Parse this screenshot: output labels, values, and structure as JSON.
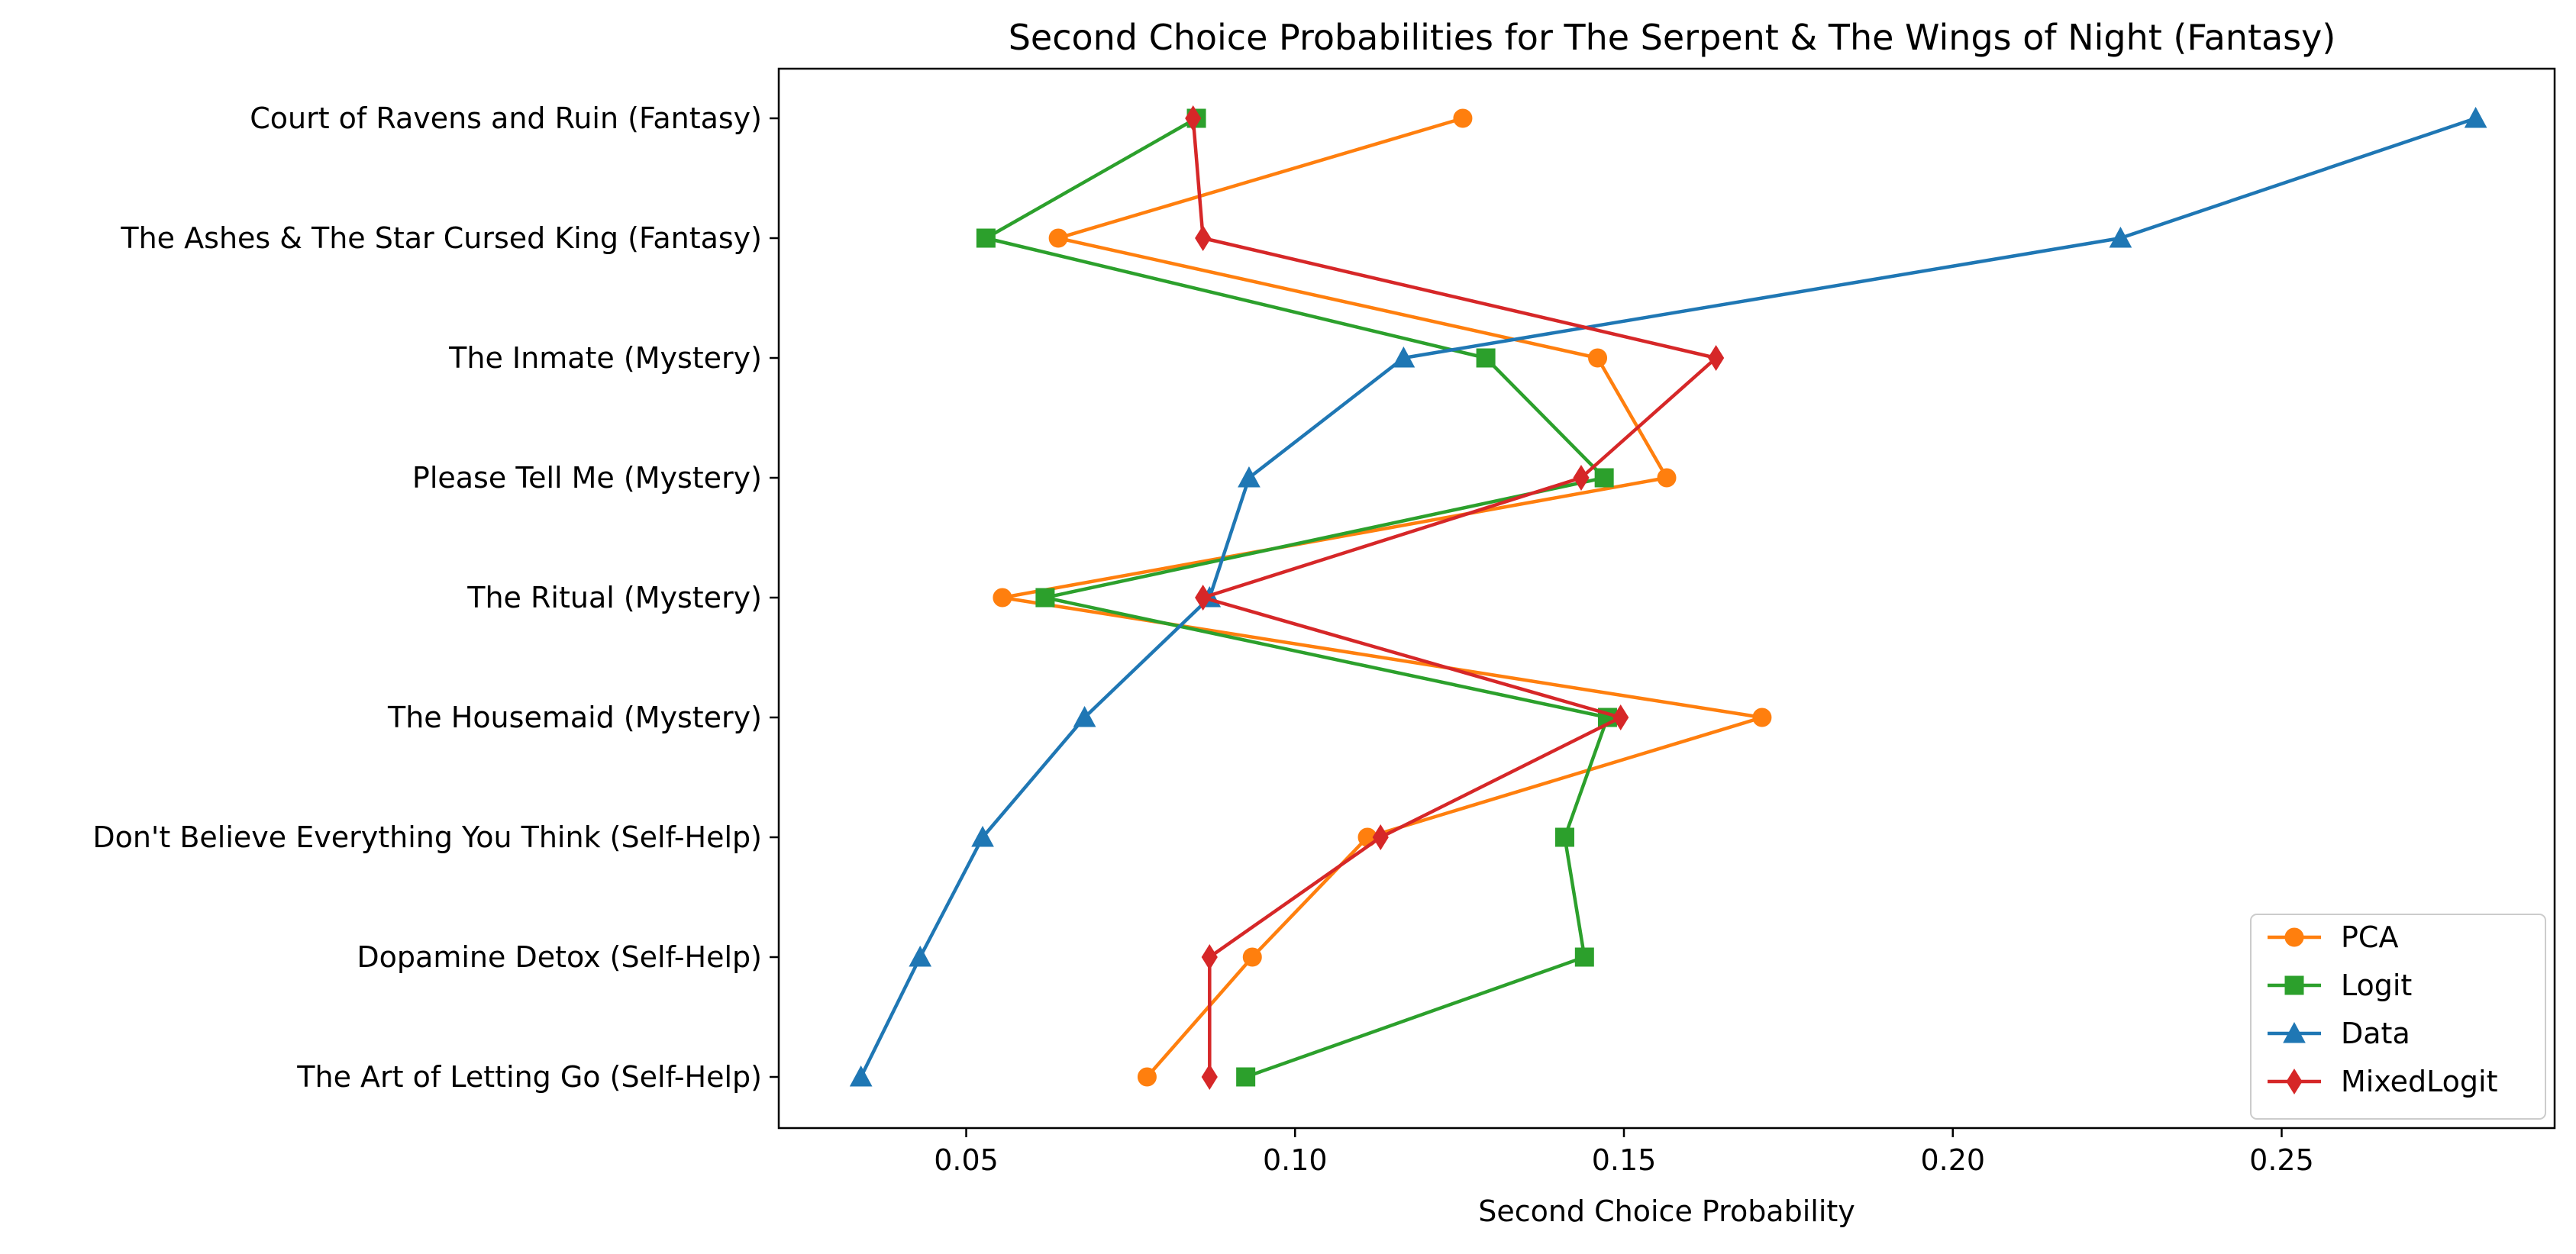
{
  "chart_data": {
    "type": "line",
    "title": "Second Choice Probabilities for The Serpent & The Wings of Night (Fantasy)",
    "xlabel": "Second Choice Probability",
    "ylabel": "",
    "xlim": [
      0.0215,
      0.2915
    ],
    "xticks": [
      0.05,
      0.1,
      0.15,
      0.2,
      0.25
    ],
    "xtick_labels": [
      "0.05",
      "0.10",
      "0.15",
      "0.20",
      "0.25"
    ],
    "categories": [
      "Court of Ravens and Ruin (Fantasy)",
      "The Ashes & The Star Cursed King (Fantasy)",
      "The Inmate (Mystery)",
      "Please Tell Me (Mystery)",
      "The Ritual (Mystery)",
      "The Housemaid (Mystery)",
      "Don't Believe Everything You Think (Self-Help)",
      "Dopamine Detox (Self-Help)",
      "The Art of Letting Go (Self-Help)"
    ],
    "series": [
      {
        "name": "PCA",
        "color": "#ff7f0e",
        "marker": "circle",
        "values": [
          0.1255,
          0.064,
          0.146,
          0.1565,
          0.0555,
          0.171,
          0.111,
          0.0935,
          0.0775
        ]
      },
      {
        "name": "Logit",
        "color": "#2ca02c",
        "marker": "square",
        "values": [
          0.085,
          0.053,
          0.129,
          0.147,
          0.062,
          0.1475,
          0.141,
          0.144,
          0.0925
        ]
      },
      {
        "name": "Data",
        "color": "#1f77b4",
        "marker": "triangle",
        "values": [
          0.2795,
          0.2255,
          0.1165,
          0.093,
          0.087,
          0.068,
          0.0525,
          0.043,
          0.034
        ]
      },
      {
        "name": "MixedLogit",
        "color": "#d62728",
        "marker": "diamond",
        "values": [
          0.0845,
          0.086,
          0.164,
          0.1435,
          0.086,
          0.1495,
          0.113,
          0.087,
          0.087
        ]
      }
    ],
    "grid": false,
    "legend_position": "lower-right"
  }
}
